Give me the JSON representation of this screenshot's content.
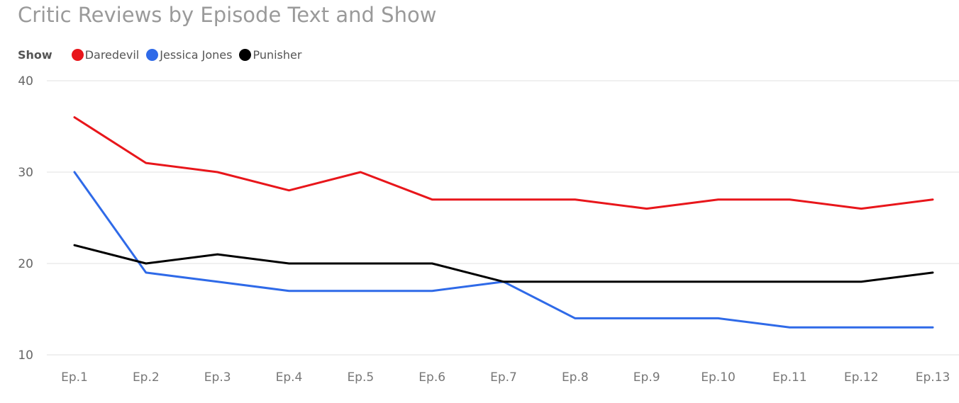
{
  "chart_data": {
    "type": "line",
    "title": "Critic Reviews by Episode Text and Show",
    "legend_title": "Show",
    "legend_position": "top-left",
    "categories": [
      "Ep.1",
      "Ep.2",
      "Ep.3",
      "Ep.4",
      "Ep.5",
      "Ep.6",
      "Ep.7",
      "Ep.8",
      "Ep.9",
      "Ep.10",
      "Ep.11",
      "Ep.12",
      "Ep.13"
    ],
    "yticks": [
      10,
      20,
      30,
      40
    ],
    "ylim": [
      10,
      40
    ],
    "grid": true,
    "xlabel": "",
    "ylabel": "",
    "series": [
      {
        "name": "Daredevil",
        "color": "#e8161b",
        "values": [
          36,
          31,
          30,
          28,
          30,
          27,
          27,
          27,
          26,
          27,
          27,
          26,
          27
        ]
      },
      {
        "name": "Jessica Jones",
        "color": "#2f6ae8",
        "values": [
          30,
          19,
          18,
          17,
          17,
          17,
          18,
          14,
          14,
          14,
          13,
          13,
          13
        ]
      },
      {
        "name": "Punisher",
        "color": "#000000",
        "values": [
          22,
          20,
          21,
          20,
          20,
          20,
          18,
          18,
          18,
          18,
          18,
          18,
          19
        ]
      }
    ]
  }
}
